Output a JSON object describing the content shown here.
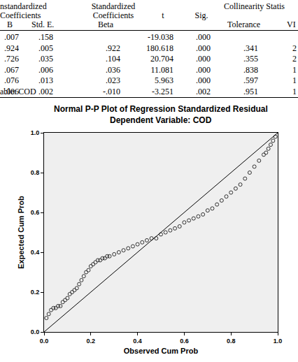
{
  "table": {
    "group_headers": [
      "nstandardized",
      "Standardized",
      "Collinearity Statis"
    ],
    "group_headers_2": [
      "Coefficients",
      "Coefficients",
      "t",
      "Sig."
    ],
    "columns": [
      "B",
      "Std. E.",
      "Beta",
      null,
      null,
      "Tolerance",
      "VI"
    ],
    "rows": [
      [
        ".007",
        ".158",
        null,
        "-19.038",
        ".000",
        null,
        null
      ],
      [
        ".924",
        ".005",
        ".922",
        "180.618",
        ".000",
        ".341",
        "2"
      ],
      [
        ".726",
        ".035",
        ".104",
        "20.704",
        ".000",
        ".355",
        "2"
      ],
      [
        ".067",
        ".006",
        ".036",
        "11.081",
        ".000",
        ".838",
        "1"
      ],
      [
        ".076",
        ".013",
        ".023",
        "5.963",
        ".000",
        ".597",
        "1"
      ],
      [
        ".006",
        ".002",
        "-.010",
        "-3.251",
        ".002",
        ".951",
        "1"
      ]
    ],
    "footnote": "able: COD"
  },
  "chart_data": {
    "type": "scatter",
    "title": "Normal P-P Plot of Regression Standardized Residual",
    "subtitle": "Dependent Variable: COD",
    "x_label": "Observed Cum Prob",
    "y_label": "Expected Cum Prob",
    "xlim": [
      0,
      1
    ],
    "ylim": [
      0,
      1
    ],
    "xticks": [
      {
        "value": 0,
        "label": "0.0"
      },
      {
        "value": 0.2,
        "label": "0.2"
      },
      {
        "value": 0.4,
        "label": "0.4"
      },
      {
        "value": 0.6,
        "label": "0.6"
      },
      {
        "value": 0.8,
        "label": "0.8"
      },
      {
        "value": 1,
        "label": "1.0"
      }
    ],
    "yticks": [
      {
        "value": 0,
        "label": "0.0"
      },
      {
        "value": 0.2,
        "label": "0.2"
      },
      {
        "value": 0.4,
        "label": "0.4"
      },
      {
        "value": 0.6,
        "label": "0.6"
      },
      {
        "value": 0.8,
        "label": "0.8"
      },
      {
        "value": 1,
        "label": "1.0"
      }
    ],
    "grid": false,
    "series": [
      {
        "type": "scatter",
        "marker": "open circle",
        "color": "#333333",
        "x": [
          0.01,
          0.02,
          0.03,
          0.04,
          0.05,
          0.06,
          0.07,
          0.08,
          0.09,
          0.1,
          0.11,
          0.12,
          0.13,
          0.14,
          0.15,
          0.16,
          0.17,
          0.18,
          0.19,
          0.2,
          0.21,
          0.22,
          0.23,
          0.24,
          0.25,
          0.26,
          0.27,
          0.28,
          0.3,
          0.32,
          0.34,
          0.36,
          0.38,
          0.4,
          0.42,
          0.44,
          0.46,
          0.48,
          0.5,
          0.52,
          0.54,
          0.56,
          0.58,
          0.6,
          0.62,
          0.64,
          0.66,
          0.68,
          0.7,
          0.72,
          0.74,
          0.76,
          0.78,
          0.8,
          0.82,
          0.84,
          0.86,
          0.88,
          0.9,
          0.92,
          0.94,
          0.95,
          0.96,
          0.97,
          0.98,
          0.99
        ],
        "values": [
          0.07,
          0.09,
          0.11,
          0.12,
          0.12,
          0.13,
          0.13,
          0.15,
          0.16,
          0.17,
          0.19,
          0.2,
          0.21,
          0.22,
          0.24,
          0.26,
          0.28,
          0.3,
          0.31,
          0.33,
          0.34,
          0.35,
          0.36,
          0.36,
          0.37,
          0.37,
          0.38,
          0.38,
          0.39,
          0.4,
          0.41,
          0.42,
          0.43,
          0.44,
          0.45,
          0.46,
          0.47,
          0.47,
          0.49,
          0.5,
          0.51,
          0.52,
          0.53,
          0.55,
          0.56,
          0.57,
          0.58,
          0.59,
          0.61,
          0.62,
          0.64,
          0.66,
          0.68,
          0.7,
          0.72,
          0.74,
          0.77,
          0.8,
          0.83,
          0.86,
          0.89,
          0.9,
          0.92,
          0.94,
          0.96,
          0.98
        ]
      },
      {
        "type": "line",
        "line_style": "solid",
        "color": "#000000",
        "x": [
          0,
          1
        ],
        "values": [
          0,
          1
        ]
      }
    ]
  }
}
